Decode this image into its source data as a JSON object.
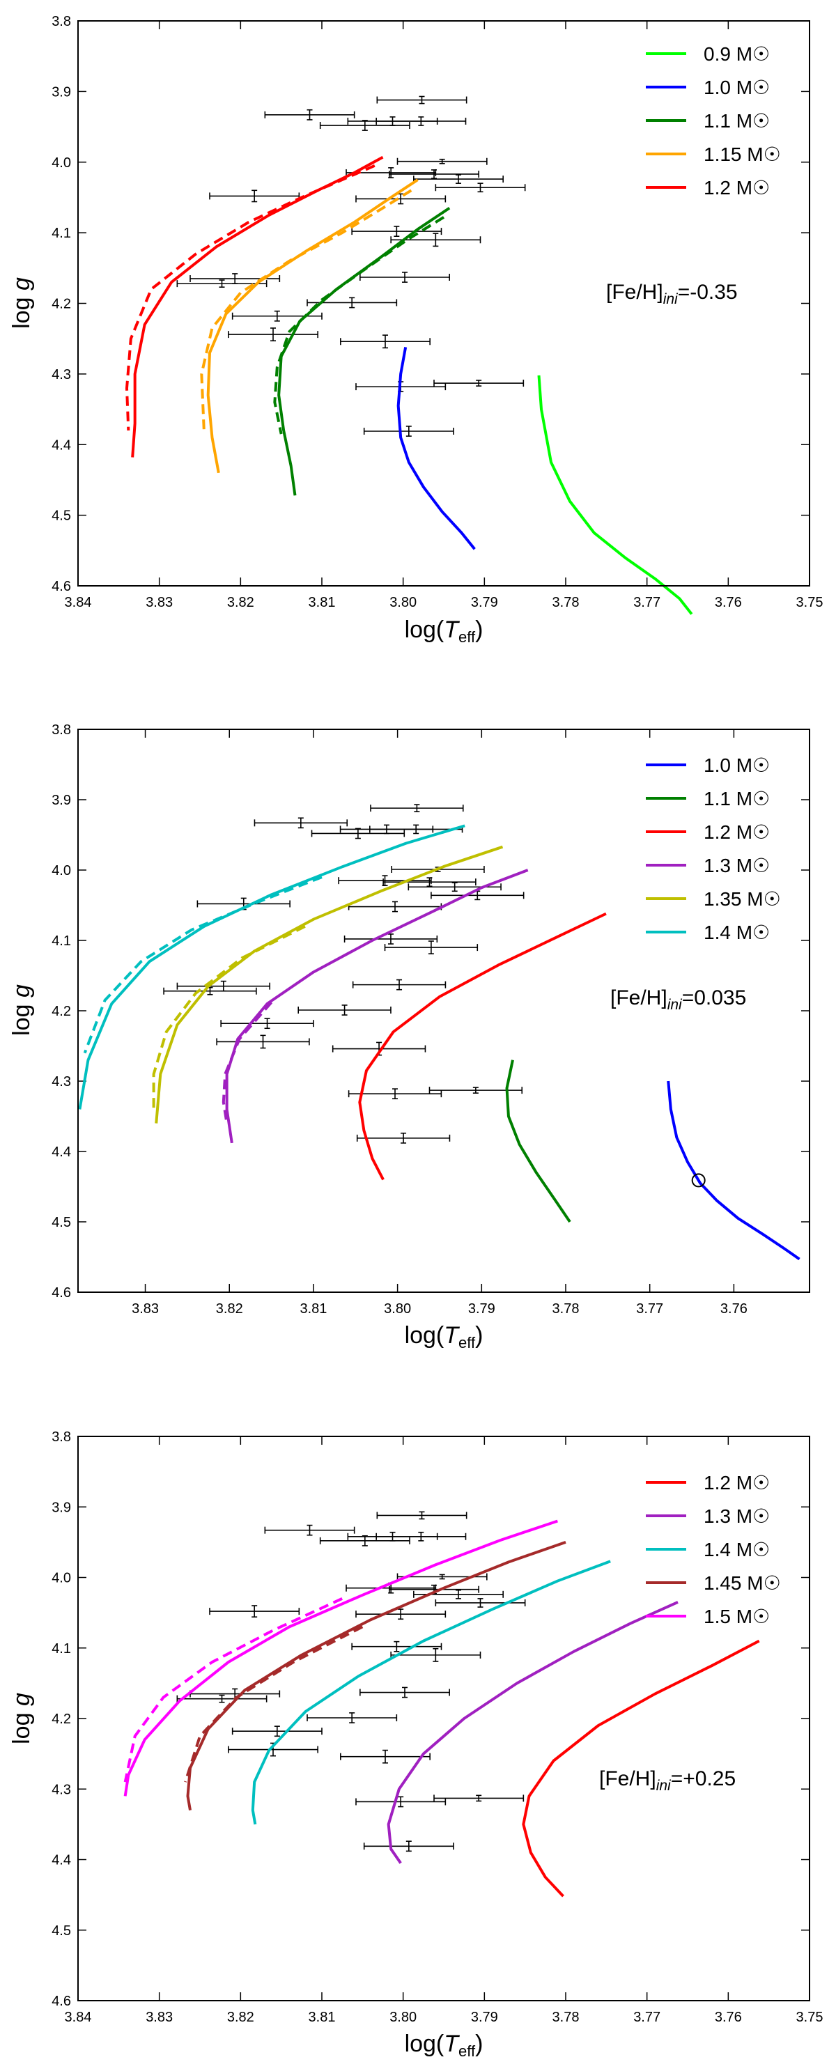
{
  "chart_data": [
    {
      "type": "line",
      "title": "",
      "xlabel": "log(T_eff)",
      "ylabel": "log g",
      "xlim": [
        3.84,
        3.75
      ],
      "ylim": [
        4.6,
        3.8
      ],
      "xticks": [
        3.84,
        3.83,
        3.82,
        3.81,
        3.8,
        3.79,
        3.78,
        3.77,
        3.76,
        3.75
      ],
      "yticks": [
        3.8,
        3.9,
        4.0,
        4.1,
        4.2,
        4.3,
        4.4,
        4.5,
        4.6
      ],
      "annotation": "[Fe/H]ini=-0.35",
      "legend_position": "top-right",
      "series": [
        {
          "name": "0.9 M☉",
          "color": "#00ff00",
          "x": [
            3.7833,
            3.783,
            3.7818,
            3.7795,
            3.7765,
            3.7727,
            3.769,
            3.766,
            3.7645
          ],
          "y": [
            4.302,
            4.35,
            4.425,
            4.48,
            4.525,
            4.56,
            4.59,
            4.618,
            4.64
          ]
        },
        {
          "name": "1.0 M☉",
          "color": "#0000ff",
          "x": [
            3.7997,
            3.8003,
            3.8006,
            3.8003,
            3.7993,
            3.7975,
            3.7952,
            3.7928,
            3.7912
          ],
          "y": [
            4.262,
            4.3,
            4.345,
            4.39,
            4.425,
            4.46,
            4.495,
            4.525,
            4.548
          ]
        },
        {
          "name": "1.1 M☉",
          "color": "#008000",
          "x": [
            3.7943,
            3.7982,
            3.8028,
            3.8082,
            3.8127,
            3.815,
            3.8153,
            3.8147,
            3.8138,
            3.8133
          ],
          "y": [
            4.065,
            4.095,
            4.135,
            4.18,
            4.225,
            4.275,
            4.33,
            4.38,
            4.43,
            4.472
          ],
          "dashed_x": [
            3.795,
            3.7995,
            3.8045,
            3.81,
            3.814,
            3.8155,
            3.8158,
            3.815
          ],
          "dashed_y": [
            4.078,
            4.11,
            4.15,
            4.195,
            4.24,
            4.29,
            4.34,
            4.385
          ]
        },
        {
          "name": "1.15 M☉",
          "color": "#ffa500",
          "x": [
            3.7982,
            3.8015,
            3.806,
            3.8118,
            3.8178,
            3.8218,
            3.8238,
            3.824,
            3.8235,
            3.8227
          ],
          "y": [
            4.025,
            4.05,
            4.085,
            4.125,
            4.17,
            4.215,
            4.27,
            4.33,
            4.39,
            4.44
          ],
          "dashed_x": [
            3.799,
            3.8025,
            3.8075,
            3.814,
            3.82,
            3.8235,
            3.8248,
            3.8245
          ],
          "dashed_y": [
            4.04,
            4.065,
            4.1,
            4.14,
            4.185,
            4.235,
            4.3,
            4.38
          ]
        },
        {
          "name": "1.2 M☉",
          "color": "#ff0000",
          "x": [
            3.8025,
            3.806,
            3.8105,
            3.8165,
            3.823,
            3.8285,
            3.8318,
            3.833,
            3.833,
            3.8333
          ],
          "y": [
            3.993,
            4.015,
            4.04,
            4.075,
            4.12,
            4.17,
            4.23,
            4.3,
            4.37,
            4.418
          ],
          "dashed_x": [
            3.8035,
            3.8075,
            3.8125,
            3.819,
            3.8255,
            3.831,
            3.8335,
            3.834,
            3.8338
          ],
          "dashed_y": [
            4.005,
            4.025,
            4.05,
            4.085,
            4.13,
            4.18,
            4.25,
            4.32,
            4.38
          ]
        }
      ]
    },
    {
      "type": "line",
      "title": "",
      "xlabel": "log(T_eff)",
      "ylabel": "log g",
      "xlim": [
        3.838,
        3.751
      ],
      "ylim": [
        4.6,
        3.8
      ],
      "xticks": [
        3.83,
        3.82,
        3.81,
        3.8,
        3.79,
        3.78,
        3.77,
        3.76
      ],
      "yticks": [
        3.8,
        3.9,
        4.0,
        4.1,
        4.2,
        4.3,
        4.4,
        4.5,
        4.6
      ],
      "annotation": "[Fe/H]ini=0.035",
      "legend_position": "top-right",
      "marker": {
        "x": 3.7642,
        "y": 4.441,
        "shape": "open-circle"
      },
      "series": [
        {
          "name": "1.0 M☉",
          "color": "#0000ff",
          "x": [
            3.7678,
            3.7675,
            3.7668,
            3.7655,
            3.764,
            3.762,
            3.7595,
            3.7565,
            3.754,
            3.7522
          ],
          "y": [
            4.3,
            4.34,
            4.38,
            4.415,
            4.445,
            4.47,
            4.495,
            4.518,
            4.538,
            4.553
          ]
        },
        {
          "name": "1.1 M☉",
          "color": "#008000",
          "x": [
            3.7863,
            3.787,
            3.7868,
            3.7855,
            3.7835,
            3.7812,
            3.7795
          ],
          "y": [
            4.27,
            4.31,
            4.35,
            4.39,
            4.43,
            4.47,
            4.5
          ]
        },
        {
          "name": "1.2 M☉",
          "color": "#ff0000",
          "x": [
            3.7752,
            3.781,
            3.788,
            3.795,
            3.8005,
            3.8037,
            3.8045,
            3.804,
            3.803,
            3.8017
          ],
          "y": [
            4.062,
            4.095,
            4.135,
            4.18,
            4.23,
            4.285,
            4.33,
            4.37,
            4.41,
            4.44
          ]
        },
        {
          "name": "1.3 M☉",
          "color": "#a020c0",
          "x": [
            3.7845,
            3.79,
            3.796,
            3.803,
            3.81,
            3.8155,
            3.819,
            3.8203,
            3.8203,
            3.8197
          ],
          "y": [
            4.0,
            4.025,
            4.06,
            4.1,
            4.145,
            4.19,
            4.24,
            4.29,
            4.34,
            4.388
          ],
          "dashed_x": [
            3.815,
            3.8188,
            3.8205,
            3.8207,
            3.8203
          ],
          "dashed_y": [
            4.188,
            4.24,
            4.29,
            4.33,
            4.36
          ]
        },
        {
          "name": "1.35 M☉",
          "color": "#bfbf00",
          "x": [
            3.7875,
            3.7945,
            3.802,
            3.81,
            3.817,
            3.8225,
            3.8262,
            3.8282,
            3.8287
          ],
          "y": [
            3.967,
            3.995,
            4.03,
            4.07,
            4.115,
            4.165,
            4.22,
            4.29,
            4.36
          ],
          "dashed_x": [
            3.811,
            3.8185,
            3.824,
            3.8275,
            3.829,
            3.829
          ],
          "dashed_y": [
            4.08,
            4.125,
            4.175,
            4.23,
            4.29,
            4.34
          ]
        },
        {
          "name": "1.4 M☉",
          "color": "#00bfbf",
          "x": [
            3.792,
            3.799,
            3.8065,
            3.815,
            3.823,
            3.8295,
            3.834,
            3.8368,
            3.8378
          ],
          "y": [
            3.937,
            3.962,
            3.995,
            4.035,
            4.08,
            4.13,
            4.19,
            4.27,
            4.34
          ],
          "dashed_x": [
            3.809,
            3.8165,
            3.8245,
            3.8305,
            3.8348,
            3.8372
          ],
          "dashed_y": [
            4.01,
            4.045,
            4.085,
            4.13,
            4.185,
            4.26
          ]
        }
      ]
    },
    {
      "type": "line",
      "title": "",
      "xlabel": "log(T_eff)",
      "ylabel": "log g",
      "xlim": [
        3.84,
        3.75
      ],
      "ylim": [
        4.6,
        3.8
      ],
      "xticks": [
        3.84,
        3.83,
        3.82,
        3.81,
        3.8,
        3.79,
        3.78,
        3.77,
        3.76,
        3.75
      ],
      "yticks": [
        3.8,
        3.9,
        4.0,
        4.1,
        4.2,
        4.3,
        4.4,
        4.5,
        4.6
      ],
      "annotation": "[Fe/H]ini=+0.25",
      "legend_position": "top-right",
      "series": [
        {
          "name": "1.2 M☉",
          "color": "#ff0000",
          "x": [
            3.7562,
            3.762,
            3.769,
            3.776,
            3.7815,
            3.7845,
            3.7852,
            3.7843,
            3.7825,
            3.7803
          ],
          "y": [
            4.09,
            4.125,
            4.165,
            4.21,
            4.26,
            4.31,
            4.35,
            4.39,
            4.425,
            4.452
          ]
        },
        {
          "name": "1.3 M☉",
          "color": "#a020c0",
          "x": [
            3.7662,
            3.772,
            3.779,
            3.786,
            3.7925,
            3.7975,
            3.8005,
            3.8018,
            3.8015,
            3.8003
          ],
          "y": [
            4.035,
            4.065,
            4.105,
            4.15,
            4.2,
            4.25,
            4.3,
            4.35,
            4.385,
            4.405
          ]
        },
        {
          "name": "1.4 M☉",
          "color": "#00bfbf",
          "x": [
            3.7745,
            3.781,
            3.789,
            3.7975,
            3.8055,
            3.812,
            3.8165,
            3.8183,
            3.8185,
            3.8182
          ],
          "y": [
            3.977,
            4.005,
            4.045,
            4.09,
            4.14,
            4.19,
            4.245,
            4.29,
            4.33,
            4.35
          ]
        },
        {
          "name": "1.45 M☉",
          "color": "#a52a2a",
          "x": [
            3.78,
            3.787,
            3.795,
            3.804,
            3.8125,
            3.8195,
            3.824,
            3.8262,
            3.8265,
            3.8262
          ],
          "y": [
            3.95,
            3.978,
            4.015,
            4.06,
            4.11,
            4.16,
            4.215,
            4.27,
            4.31,
            4.33
          ],
          "dashed_x": [
            3.805,
            3.8135,
            3.8205,
            3.825,
            3.8268
          ],
          "dashed_y": [
            4.07,
            4.12,
            4.17,
            4.225,
            4.29
          ]
        },
        {
          "name": "1.5 M☉",
          "color": "#ff00ff",
          "x": [
            3.781,
            3.788,
            3.796,
            3.805,
            3.814,
            3.8215,
            3.8275,
            3.8318,
            3.8338,
            3.8342
          ],
          "y": [
            3.92,
            3.947,
            3.982,
            4.025,
            4.07,
            4.12,
            4.175,
            4.23,
            4.28,
            4.31
          ],
          "dashed_x": [
            3.8075,
            3.816,
            3.8235,
            3.8295,
            3.833,
            3.8342
          ],
          "dashed_y": [
            4.03,
            4.075,
            4.12,
            4.17,
            4.225,
            4.29
          ]
        }
      ]
    }
  ],
  "observations": [
    {
      "x": 3.7977,
      "y": 3.912,
      "xerr": 0.0055,
      "yerr": 0.005
    },
    {
      "x": 3.8115,
      "y": 3.933,
      "xerr": 0.0055,
      "yerr": 0.007
    },
    {
      "x": 3.8047,
      "y": 3.948,
      "xerr": 0.0055,
      "yerr": 0.007
    },
    {
      "x": 3.8013,
      "y": 3.942,
      "xerr": 0.0055,
      "yerr": 0.006
    },
    {
      "x": 3.7978,
      "y": 3.942,
      "xerr": 0.0055,
      "yerr": 0.006
    },
    {
      "x": 3.7952,
      "y": 3.999,
      "xerr": 0.0055,
      "yerr": 0.003
    },
    {
      "x": 3.8015,
      "y": 4.015,
      "xerr": 0.0055,
      "yerr": 0.007
    },
    {
      "x": 3.7962,
      "y": 4.017,
      "xerr": 0.0055,
      "yerr": 0.006
    },
    {
      "x": 3.7932,
      "y": 4.024,
      "xerr": 0.0055,
      "yerr": 0.006
    },
    {
      "x": 3.7905,
      "y": 4.036,
      "xerr": 0.0055,
      "yerr": 0.006
    },
    {
      "x": 3.8183,
      "y": 4.048,
      "xerr": 0.0055,
      "yerr": 0.008
    },
    {
      "x": 3.8003,
      "y": 4.052,
      "xerr": 0.0055,
      "yerr": 0.007
    },
    {
      "x": 3.8008,
      "y": 4.098,
      "xerr": 0.0055,
      "yerr": 0.007
    },
    {
      "x": 3.796,
      "y": 4.11,
      "xerr": 0.0055,
      "yerr": 0.009
    },
    {
      "x": 3.8223,
      "y": 4.172,
      "xerr": 0.0055,
      "yerr": 0.005
    },
    {
      "x": 3.8207,
      "y": 4.165,
      "xerr": 0.0055,
      "yerr": 0.007
    },
    {
      "x": 3.7998,
      "y": 4.163,
      "xerr": 0.0055,
      "yerr": 0.007
    },
    {
      "x": 3.8063,
      "y": 4.199,
      "xerr": 0.0055,
      "yerr": 0.007
    },
    {
      "x": 3.8155,
      "y": 4.218,
      "xerr": 0.0055,
      "yerr": 0.007
    },
    {
      "x": 3.816,
      "y": 4.244,
      "xerr": 0.0055,
      "yerr": 0.009
    },
    {
      "x": 3.8022,
      "y": 4.254,
      "xerr": 0.0055,
      "yerr": 0.009
    },
    {
      "x": 3.8003,
      "y": 4.318,
      "xerr": 0.0055,
      "yerr": 0.007
    },
    {
      "x": 3.7907,
      "y": 4.313,
      "xerr": 0.0055,
      "yerr": 0.004
    },
    {
      "x": 3.7993,
      "y": 4.381,
      "xerr": 0.0055,
      "yerr": 0.007
    }
  ]
}
